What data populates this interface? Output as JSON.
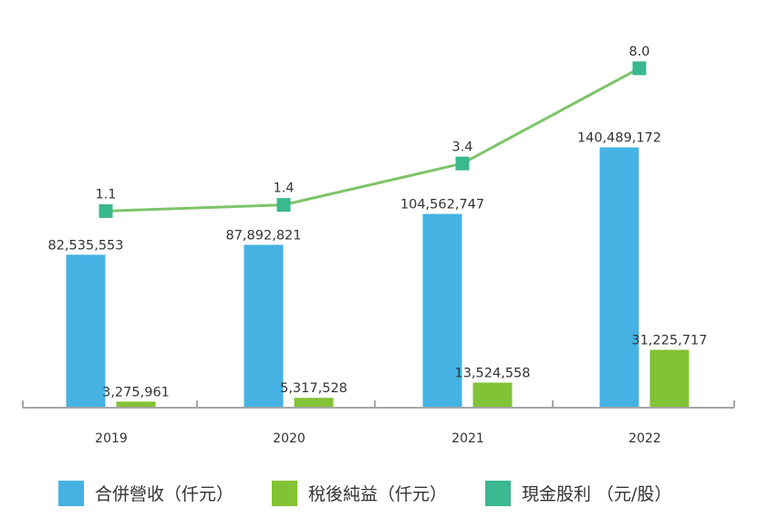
{
  "chart_data": {
    "type": "bar",
    "title": "",
    "xlabel": "",
    "ylabel": "",
    "categories": [
      "2019",
      "2020",
      "2021",
      "2022"
    ],
    "ylim": [
      0,
      220000000
    ],
    "grid": false,
    "legend_position": "bottom",
    "series": [
      {
        "name": "合併營收（仟元）",
        "kind": "bar",
        "color": "#45b2e3",
        "values": [
          82535553,
          87892821,
          104562747,
          140489172
        ],
        "labels": [
          "82,535,553",
          "87,892,821",
          "104,562,747",
          "140,489,172"
        ]
      },
      {
        "name": "稅後純益（仟元）",
        "kind": "bar",
        "color": "#82c235",
        "values": [
          3275961,
          5317528,
          13524558,
          31225717
        ],
        "labels": [
          "3,275,961",
          "5,317,528",
          "13,524,558",
          "31,225,717"
        ]
      },
      {
        "name": "現金股利 （元/股）",
        "kind": "line",
        "color": "#3ab890",
        "line_color": "#7ec46a",
        "values": [
          1.1,
          1.4,
          3.4,
          8.0
        ],
        "labels": [
          "1.1",
          "1.4",
          "3.4",
          "8.0"
        ],
        "ylim": [
          -8.4,
          11.3
        ]
      }
    ]
  }
}
